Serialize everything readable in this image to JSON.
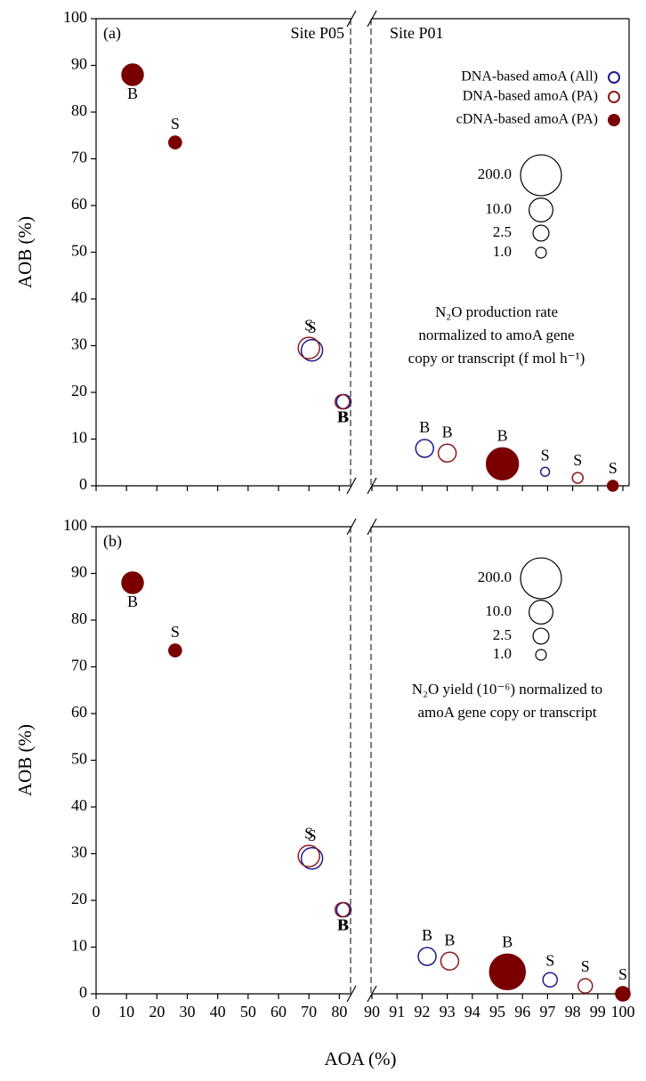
{
  "chart_data": [
    {
      "type": "scatter",
      "panel_label": "(a)",
      "ylabel": "AOB (%)",
      "xlim": [
        0,
        100
      ],
      "xbreak": [
        84,
        90
      ],
      "ylim": [
        0,
        100
      ],
      "xticks": [
        0,
        10,
        20,
        30,
        40,
        50,
        60,
        70,
        80,
        90,
        91,
        92,
        93,
        94,
        95,
        96,
        97,
        98,
        99,
        100
      ],
      "yticks": [
        0,
        10,
        20,
        30,
        40,
        50,
        60,
        70,
        80,
        90,
        100
      ],
      "show_xtick_labels": false,
      "legend": true,
      "site_labels": [
        "Site P05",
        "Site P01"
      ],
      "series": [
        {
          "name": "DNA-based amoA (All)",
          "color": "#1c1c8a",
          "filled": false,
          "x": [
            71,
            81.5,
            92.1,
            96.9
          ],
          "y": [
            29,
            18,
            8,
            3
          ],
          "size": [
            6.5,
            1.9,
            3.5,
            0.73
          ],
          "point_labels": [
            "S",
            "B",
            "B",
            "S"
          ]
        },
        {
          "name": "DNA-based amoA (PA)",
          "color": "#8b1a1a",
          "filled": false,
          "x": [
            70,
            81,
            93,
            98.2
          ],
          "y": [
            29.5,
            18,
            7,
            1.7
          ],
          "size": [
            6.5,
            1.9,
            3.5,
            1.0
          ],
          "point_labels": [
            "S",
            "B",
            "B",
            "S"
          ]
        },
        {
          "name": "cDNA-based amoA (PA)",
          "color": "#7a0000",
          "filled": true,
          "x": [
            12,
            26,
            95.2,
            99.6
          ],
          "y": [
            88,
            73.5,
            4.7,
            0
          ],
          "size": [
            6.5,
            1.4,
            42,
            1.0
          ],
          "point_labels": [
            "B",
            "S",
            "B",
            "S"
          ]
        }
      ],
      "size_legend": [
        {
          "value": 200,
          "label": "200.0"
        },
        {
          "value": 10,
          "label": "10.0"
        },
        {
          "value": 2.5,
          "label": "2.5"
        },
        {
          "value": 1,
          "label": "1.0"
        }
      ],
      "annotation": [
        "N₂O production rate",
        "normalized to amoA gene",
        "copy or transcript (f mol h⁻¹)"
      ]
    },
    {
      "type": "scatter",
      "panel_label": "(b)",
      "ylabel": "AOB (%)",
      "xlabel": "AOA (%)",
      "xlim": [
        0,
        100
      ],
      "xbreak": [
        84,
        90
      ],
      "ylim": [
        0,
        100
      ],
      "xticks": [
        0,
        10,
        20,
        30,
        40,
        50,
        60,
        70,
        80,
        90,
        91,
        92,
        93,
        94,
        95,
        96,
        97,
        98,
        99,
        100
      ],
      "yticks": [
        0,
        10,
        20,
        30,
        40,
        50,
        60,
        70,
        80,
        90,
        100
      ],
      "show_xtick_labels": true,
      "legend": false,
      "series": [
        {
          "color": "#1c1c8a",
          "filled": false,
          "x": [
            71,
            81.5,
            92.2,
            97.1
          ],
          "y": [
            29,
            18,
            8,
            3
          ],
          "size": [
            6.5,
            1.9,
            3.5,
            1.9
          ],
          "point_labels": [
            "S",
            "B",
            "B",
            "S"
          ]
        },
        {
          "color": "#8b1a1a",
          "filled": false,
          "x": [
            70,
            81,
            93.1,
            98.5
          ],
          "y": [
            29.5,
            18,
            7,
            1.7
          ],
          "size": [
            6.5,
            1.9,
            3.5,
            1.9
          ],
          "point_labels": [
            "S",
            "B",
            "B",
            "S"
          ]
        },
        {
          "color": "#7a0000",
          "filled": true,
          "x": [
            12,
            26,
            95.4,
            100
          ],
          "y": [
            88,
            73.5,
            4.7,
            0
          ],
          "size": [
            6.5,
            1.4,
            79,
            1.9
          ],
          "point_labels": [
            "B",
            "S",
            "B",
            "S"
          ]
        }
      ],
      "size_legend": [
        {
          "value": 200,
          "label": "200.0"
        },
        {
          "value": 10,
          "label": "10.0"
        },
        {
          "value": 2.5,
          "label": "2.5"
        },
        {
          "value": 1,
          "label": "1.0"
        }
      ],
      "annotation": [
        "N₂O yield (10⁻⁶) normalized to",
        "amoA gene copy or transcript"
      ]
    }
  ]
}
